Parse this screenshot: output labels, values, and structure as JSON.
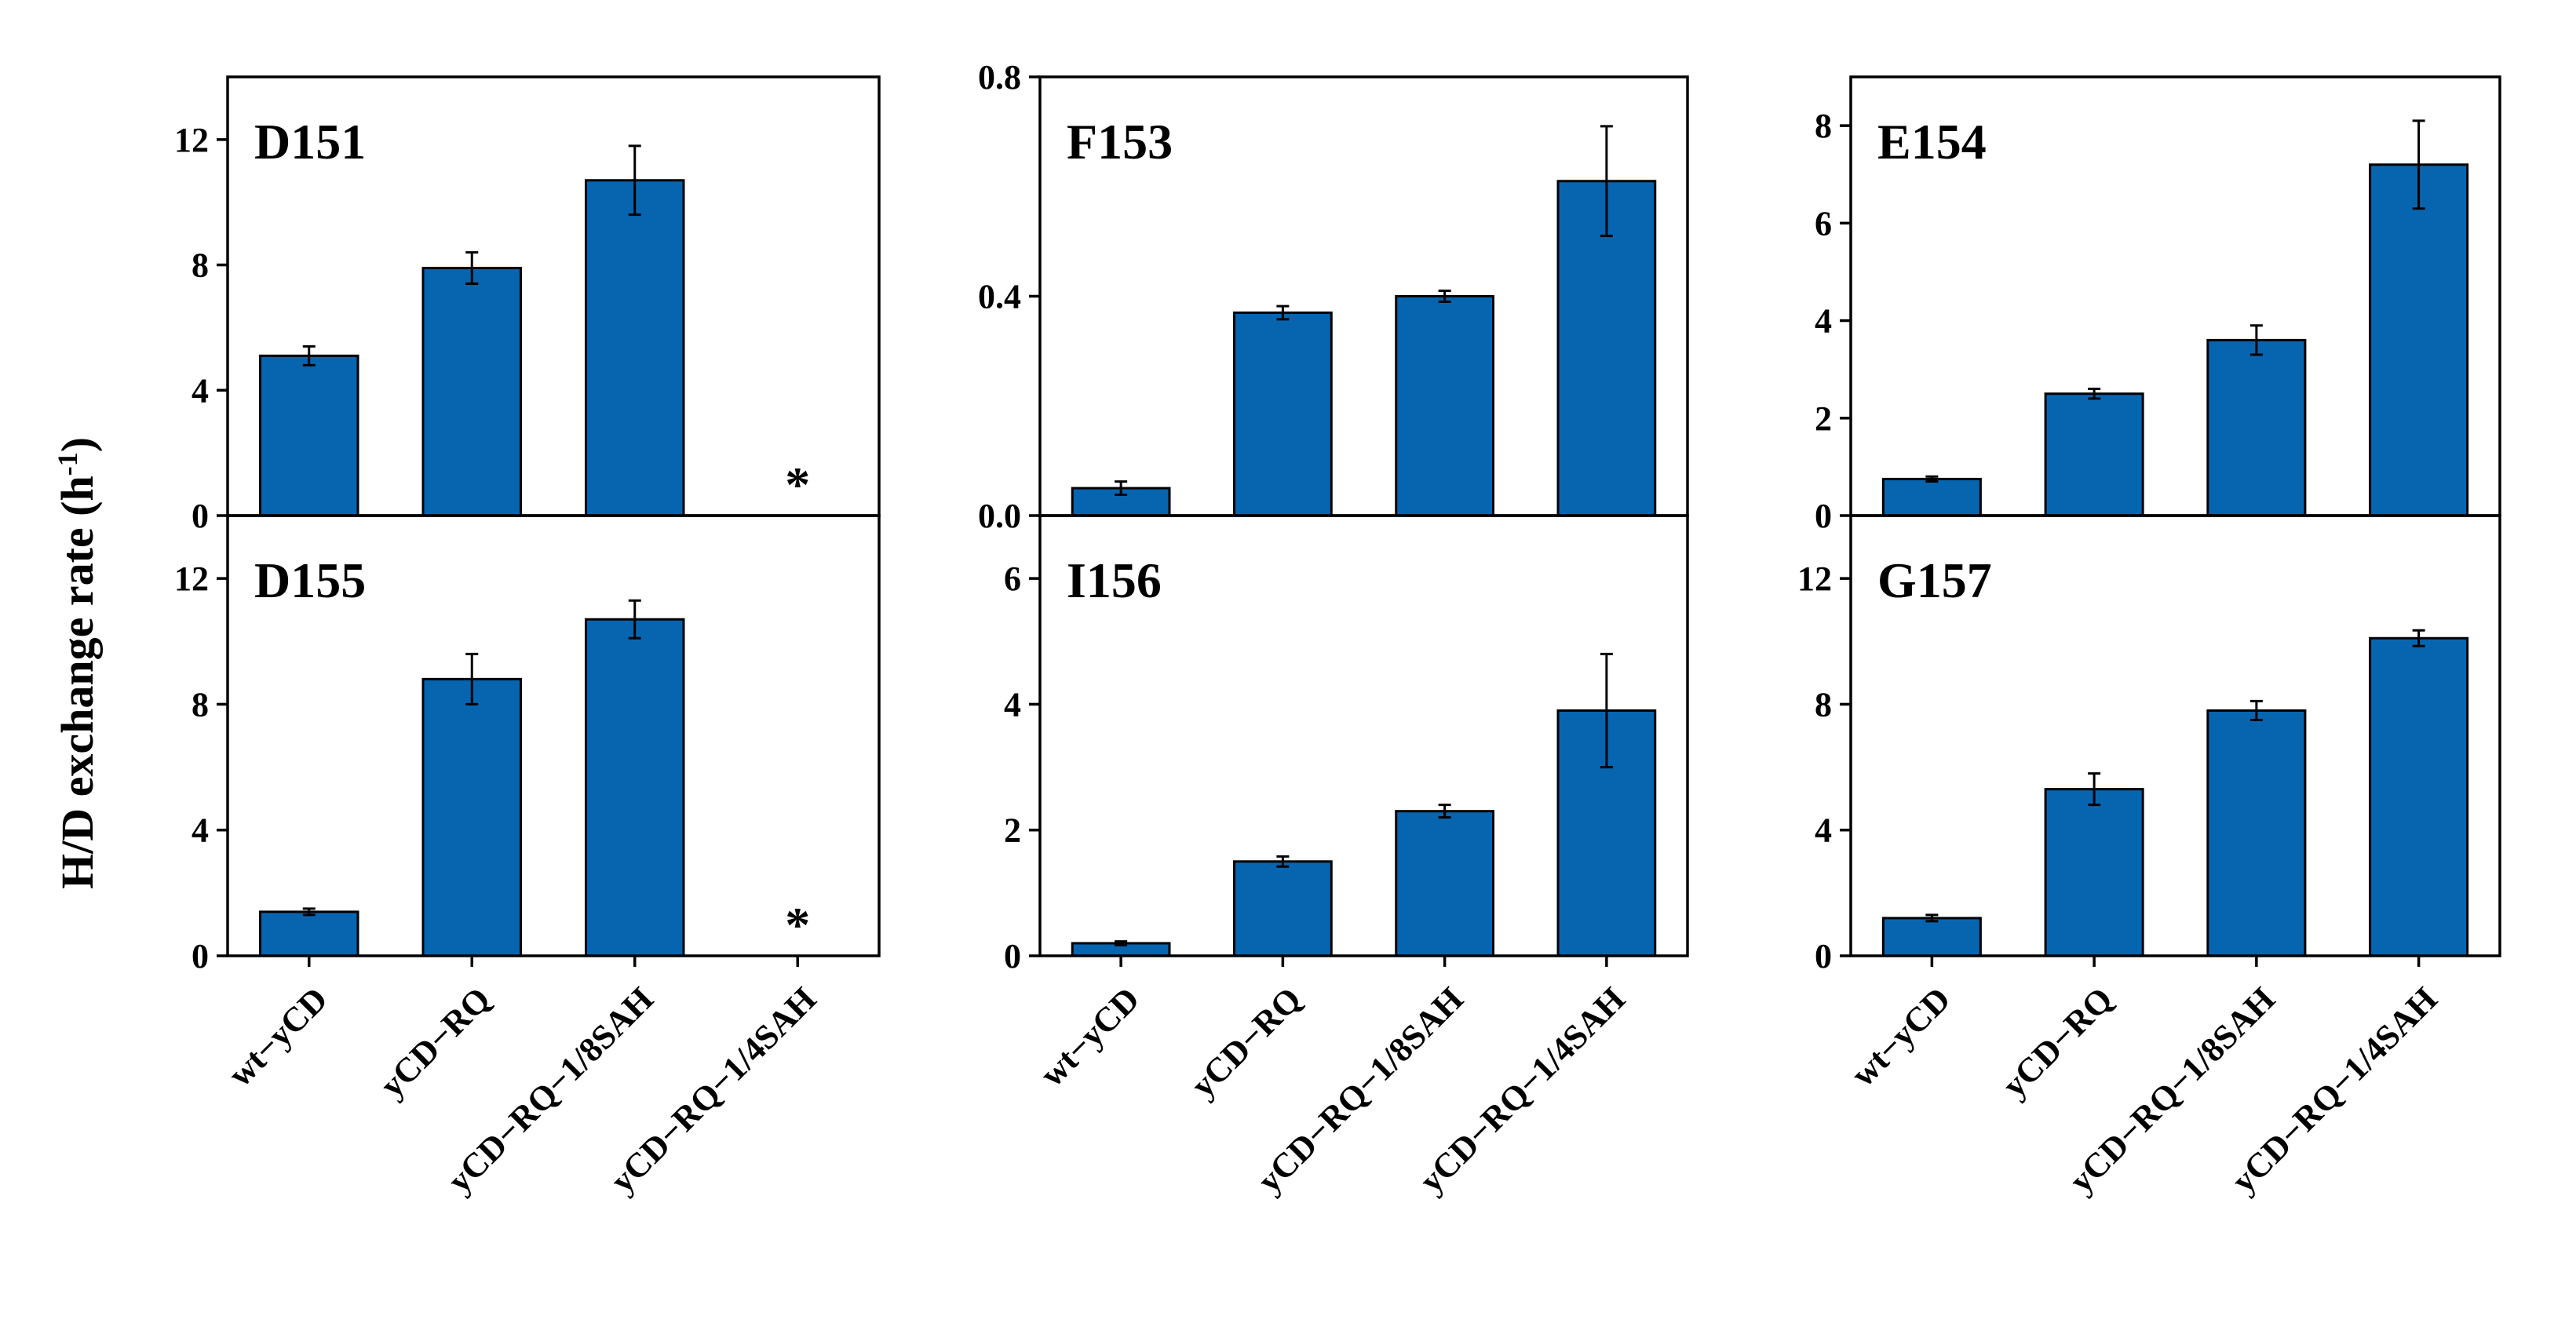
{
  "chart_data": {
    "type": "bar",
    "figure_ylabel": "H/D exchange rate (h",
    "figure_ylabel_sup": "-1",
    "figure_ylabel_close": ")",
    "categories": [
      "wt−yCD",
      "yCD−RQ",
      "yCD−RQ−1/8SAH",
      "yCD−RQ−1/4SAH"
    ],
    "bar_color": "#0765b0",
    "missing_marker": "*",
    "panels": [
      {
        "id": "D151",
        "title": "D151",
        "ylim": [
          0,
          14
        ],
        "yticks": [
          0,
          4,
          8,
          12
        ],
        "ytick_labels": [
          "0",
          "4",
          "8",
          "12"
        ],
        "values": [
          5.1,
          7.9,
          10.7,
          null
        ],
        "errors": [
          0.3,
          0.5,
          1.1,
          null
        ]
      },
      {
        "id": "F153",
        "title": "F153",
        "ylim": [
          0,
          0.8
        ],
        "yticks": [
          0.0,
          0.4,
          0.8
        ],
        "ytick_labels": [
          "0.0",
          "0.4",
          "0.8"
        ],
        "values": [
          0.05,
          0.37,
          0.4,
          0.61
        ],
        "errors": [
          0.012,
          0.012,
          0.01,
          0.1
        ]
      },
      {
        "id": "E154",
        "title": "E154",
        "ylim": [
          0,
          9
        ],
        "yticks": [
          0,
          2,
          4,
          6,
          8
        ],
        "ytick_labels": [
          "0",
          "2",
          "4",
          "6",
          "8"
        ],
        "values": [
          0.75,
          2.5,
          3.6,
          7.2
        ],
        "errors": [
          0.05,
          0.1,
          0.3,
          0.9
        ]
      },
      {
        "id": "D155",
        "title": "D155",
        "ylim": [
          0,
          14
        ],
        "yticks": [
          0,
          4,
          8,
          12
        ],
        "ytick_labels": [
          "0",
          "4",
          "8",
          "12"
        ],
        "values": [
          1.4,
          8.8,
          10.7,
          null
        ],
        "errors": [
          0.1,
          0.8,
          0.6,
          null
        ]
      },
      {
        "id": "I156",
        "title": "I156",
        "ylim": [
          0,
          7
        ],
        "yticks": [
          0,
          2,
          4,
          6
        ],
        "ytick_labels": [
          "0",
          "2",
          "4",
          "6"
        ],
        "values": [
          0.2,
          1.5,
          2.3,
          3.9
        ],
        "errors": [
          0.03,
          0.08,
          0.1,
          0.9
        ]
      },
      {
        "id": "G157",
        "title": "G157",
        "ylim": [
          0,
          14
        ],
        "yticks": [
          0,
          4,
          8,
          12
        ],
        "ytick_labels": [
          "0",
          "4",
          "8",
          "12"
        ],
        "values": [
          1.2,
          5.3,
          7.8,
          10.1
        ],
        "errors": [
          0.1,
          0.5,
          0.3,
          0.25
        ]
      }
    ]
  }
}
